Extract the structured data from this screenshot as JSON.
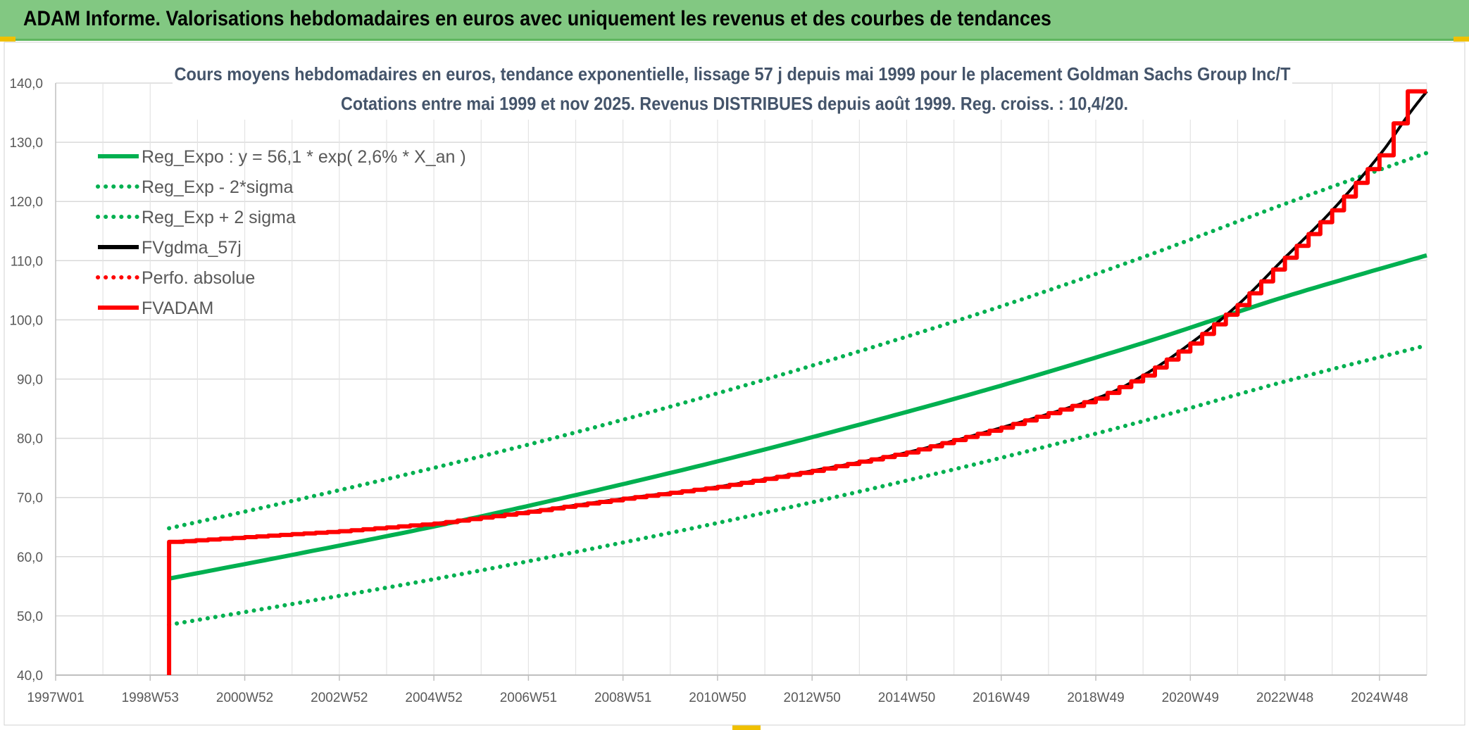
{
  "header": {
    "title": "ADAM Informe. Valorisations hebdomadaires en euros avec uniquement les revenus et des courbes de tendances"
  },
  "chart_data": {
    "type": "line",
    "title_line1": "Cours moyens hebdomadaires en euros, tendance exponentielle, lissage 57 j depuis mai 1999 pour le placement Goldman Sachs Group Inc/T",
    "title_line2": "Cotations entre mai 1999 et nov 2025. Revenus DISTRIBUES depuis août 1999. Reg. croiss. : 10,4/20.",
    "ylim": [
      40,
      140
    ],
    "y_ticks": [
      "40,0",
      "50,0",
      "60,0",
      "70,0",
      "80,0",
      "90,0",
      "100,0",
      "110,0",
      "120,0",
      "130,0",
      "140,0"
    ],
    "x_range": [
      1997.0,
      2026.0
    ],
    "x_ticks": [
      {
        "label": "1997W01",
        "year": 1997.0
      },
      {
        "label": "1998W53",
        "year": 1999.0
      },
      {
        "label": "2000W52",
        "year": 2001.0
      },
      {
        "label": "2002W52",
        "year": 2003.0
      },
      {
        "label": "2004W52",
        "year": 2005.0
      },
      {
        "label": "2006W51",
        "year": 2007.0
      },
      {
        "label": "2008W51",
        "year": 2009.0
      },
      {
        "label": "2010W50",
        "year": 2011.0
      },
      {
        "label": "2012W50",
        "year": 2013.0
      },
      {
        "label": "2014W50",
        "year": 2015.0
      },
      {
        "label": "2016W49",
        "year": 2017.0
      },
      {
        "label": "2018W49",
        "year": 2019.0
      },
      {
        "label": "2020W49",
        "year": 2021.0
      },
      {
        "label": "2022W48",
        "year": 2023.0
      },
      {
        "label": "2024W48",
        "year": 2025.0
      }
    ],
    "legend_position": "top-left",
    "series": [
      {
        "name": "Reg_Expo : y = 56,1 * exp( 2,6% *  X_an )",
        "color": "#00b050",
        "style": "solid",
        "x": [
          1999.4,
          2002,
          2005,
          2008,
          2011,
          2014,
          2017,
          2020,
          2023,
          2026
        ],
        "y": [
          56.3,
          60.3,
          65.1,
          70.4,
          76.1,
          82.3,
          88.9,
          96.1,
          103.9,
          110.9
        ]
      },
      {
        "name": "Reg_Exp - 2*sigma",
        "color": "#00b050",
        "style": "dotted",
        "x": [
          1999.4,
          2002,
          2005,
          2008,
          2011,
          2014,
          2017,
          2020,
          2023,
          2026
        ],
        "y": [
          48.5,
          52.0,
          56.2,
          60.8,
          65.7,
          71.0,
          76.7,
          82.9,
          89.6,
          95.7
        ]
      },
      {
        "name": "Reg_Exp + 2 sigma",
        "color": "#00b050",
        "style": "dotted",
        "x": [
          1999.4,
          2002,
          2005,
          2008,
          2011,
          2014,
          2017,
          2020,
          2023,
          2026
        ],
        "y": [
          64.8,
          69.4,
          75.0,
          81.0,
          87.6,
          94.7,
          102.3,
          110.6,
          119.6,
          128.2
        ]
      },
      {
        "name": "FVgdma_57j",
        "color": "#000000",
        "style": "solid",
        "x": [
          1999.4,
          2001,
          2003,
          2005,
          2007,
          2009,
          2011,
          2013,
          2015,
          2017,
          2019,
          2020,
          2021,
          2022,
          2023,
          2024,
          2025,
          2025.6,
          2026
        ],
        "y": [
          62.5,
          63.3,
          64.3,
          65.6,
          67.6,
          69.8,
          71.8,
          74.5,
          77.6,
          81.8,
          86.7,
          90.6,
          96.0,
          102.5,
          110.5,
          118.5,
          127.8,
          134.5,
          138.6
        ]
      },
      {
        "name": "Perfo. absolue",
        "color": "#ff0000",
        "style": "dotted",
        "x": [],
        "y": []
      },
      {
        "name": "FVADAM",
        "color": "#ff0000",
        "style": "solid",
        "stepped": true,
        "x": [
          1999.4,
          1999.4,
          1999.45,
          2001,
          2003,
          2005,
          2007,
          2009,
          2011,
          2013,
          2015,
          2017,
          2019,
          2020,
          2021,
          2022,
          2023,
          2024,
          2025,
          2025.6,
          2026
        ],
        "y": [
          40,
          62.5,
          62.5,
          63.3,
          64.3,
          65.6,
          67.6,
          69.8,
          71.8,
          74.5,
          77.6,
          81.8,
          86.7,
          90.6,
          96.0,
          102.5,
          110.5,
          118.5,
          127.8,
          138.6,
          138.6
        ]
      }
    ]
  }
}
